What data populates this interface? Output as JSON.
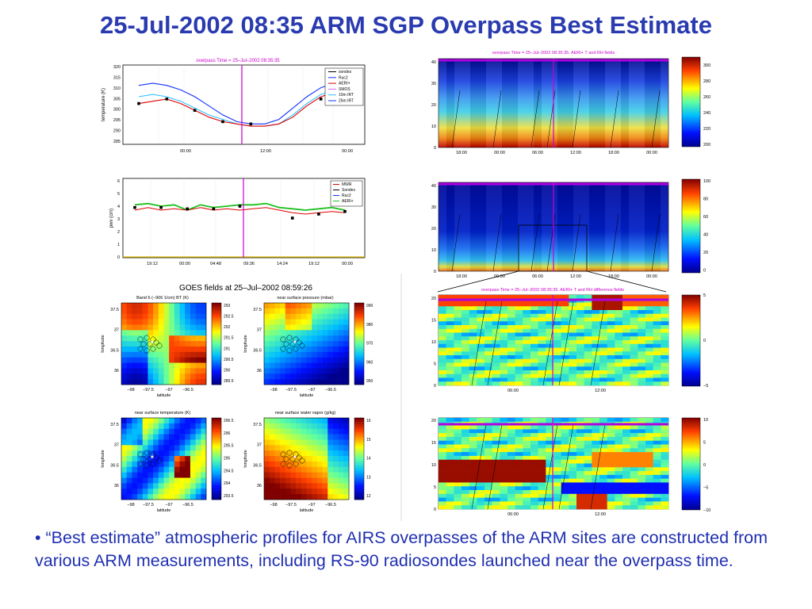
{
  "page": {
    "title": "25-Jul-2002 08:35 ARM SGP Overpass Best Estimate",
    "bullet": "• “Best estimate” atmospheric profiles for AIRS overpasses of the ARM sites are constructed from various ARM measurements, including RS-90 radiosondes launched near the overpass time.",
    "goes_heading": "GOES fields at 25–Jul–2002 08:59:26"
  },
  "colors": {
    "title": "#2a3bb0",
    "overpass_line": "#cc00cc",
    "bullet": "#1f2fb0"
  },
  "chart_data": [
    {
      "id": "temperature",
      "type": "line",
      "title": "overpass Time = 25–Jul–2002 08:35:35",
      "ylabel": "temperature (K)",
      "ylim": [
        285,
        320
      ],
      "yticks": [
        "320",
        "315",
        "310",
        "305",
        "300",
        "295",
        "290",
        "285"
      ],
      "xticks": [
        "00:00",
        "12:00",
        "00:00"
      ],
      "grid": true,
      "legend": [
        "sondes",
        "Ruc2",
        "AERI+",
        "SMOS",
        "10m IRT",
        "25m IRT"
      ],
      "legend_position": "top-right",
      "series": [
        {
          "name": "25m IRT",
          "values": [
            311,
            312,
            311,
            309,
            306,
            302,
            298,
            295,
            294,
            294,
            296,
            301,
            306,
            310,
            312,
            313
          ]
        },
        {
          "name": "10m IRT",
          "values": [
            306,
            307,
            306,
            304,
            301,
            298,
            296,
            294,
            293,
            293,
            294,
            298,
            303,
            307,
            309,
            309
          ]
        },
        {
          "name": "SMOS",
          "values": [
            303,
            304,
            305,
            303,
            300,
            297,
            295,
            294,
            293,
            293,
            294,
            297,
            302,
            306,
            308,
            308
          ]
        },
        {
          "name": "sondes",
          "values": [
            303,
            null,
            305,
            null,
            300,
            null,
            295,
            null,
            294,
            null,
            null,
            null,
            null,
            305,
            306,
            null
          ]
        }
      ]
    },
    {
      "id": "pwv",
      "type": "line",
      "ylabel": "pwv (cm)",
      "ylim": [
        0,
        6
      ],
      "yticks": [
        "6",
        "5",
        "4",
        "3",
        "2",
        "1",
        "0"
      ],
      "xticks": [
        "19:12",
        "00:00",
        "04:48",
        "09:36",
        "14:24",
        "19:12",
        "00:00"
      ],
      "grid": true,
      "legend": [
        "MWR",
        "Sondes",
        "Ruc2",
        "AERI+"
      ],
      "legend_position": "top-right",
      "series": [
        {
          "name": "AERI+",
          "values": [
            4.0,
            4.1,
            3.9,
            4.0,
            3.6,
            4.0,
            3.8,
            3.9,
            4.0,
            4.0,
            4.1,
            3.8,
            3.7,
            3.6,
            3.7,
            3.8,
            3.6
          ]
        },
        {
          "name": "MWR",
          "values": [
            3.6,
            3.8,
            3.6,
            3.7,
            3.6,
            3.8,
            3.6,
            3.7,
            3.6,
            3.7,
            3.8,
            3.6,
            3.4,
            3.3,
            3.4,
            3.5,
            3.4
          ]
        },
        {
          "name": "Sondes",
          "values": [
            3.8,
            null,
            3.8,
            null,
            3.7,
            null,
            3.7,
            null,
            3.9,
            null,
            null,
            null,
            3.0,
            null,
            3.3,
            null,
            3.5
          ]
        }
      ]
    },
    {
      "id": "aeri_temp",
      "type": "heatmap",
      "title": "overpass Time = 25–Jul–2002 08:35:35.  AERI+ T and RH fields",
      "yticks": [
        "40",
        "30",
        "20",
        "10",
        "0"
      ],
      "xticks": [
        "18:00",
        "00:00",
        "06:00",
        "12:00",
        "18:00",
        "00:00"
      ],
      "colorbar_ticks": [
        "300",
        "280",
        "260",
        "240",
        "220",
        "200"
      ]
    },
    {
      "id": "aeri_rh",
      "type": "heatmap",
      "yticks": [
        "40",
        "30",
        "20",
        "10",
        "0"
      ],
      "xticks": [
        "18:00",
        "00:00",
        "06:00",
        "12:00",
        "18:00",
        "00:00"
      ],
      "colorbar_ticks": [
        "100",
        "80",
        "60",
        "40",
        "20",
        "0"
      ]
    },
    {
      "id": "diff_temp",
      "type": "heatmap",
      "title": "overpass Time = 25–Jul–2002 08:35:35.  AERI+ T and RH difference fields",
      "yticks": [
        "20",
        "15",
        "10",
        "5",
        "0"
      ],
      "xticks": [
        "06:00",
        "12:00"
      ],
      "colorbar_ticks": [
        "5",
        "0",
        "−5"
      ]
    },
    {
      "id": "diff_rh",
      "type": "heatmap",
      "yticks": [
        "20",
        "15",
        "10",
        "5",
        "0"
      ],
      "xticks": [
        "06:00",
        "12:00"
      ],
      "colorbar_ticks": [
        "10",
        "5",
        "0",
        "−5",
        "−10"
      ]
    },
    {
      "id": "goes_bt",
      "type": "heatmap",
      "title": "Band 6 (−906 1/cm) BT (K)",
      "xlabel": "latitude",
      "ylabel": "longitude",
      "xticks": [
        "−98",
        "−97.5",
        "−97",
        "−96.5"
      ],
      "yticks": [
        "37.5",
        "37",
        "36.5",
        "36"
      ],
      "colorbar_ticks": [
        "293",
        "292.5",
        "292",
        "291.5",
        "291",
        "290.5",
        "290",
        "289.5"
      ]
    },
    {
      "id": "goes_pressure",
      "type": "heatmap",
      "title": "near surface pressure (mbar)",
      "xlabel": "latitude",
      "ylabel": "longitude",
      "xticks": [
        "−98",
        "−97.5",
        "−97",
        "−96.5"
      ],
      "yticks": [
        "37.5",
        "37",
        "36.5",
        "36"
      ],
      "colorbar_ticks": [
        "990",
        "980",
        "970",
        "960",
        "950"
      ]
    },
    {
      "id": "goes_temp",
      "type": "heatmap",
      "title": "near surface temperature (K)",
      "xlabel": "latitude",
      "ylabel": "longitude",
      "xticks": [
        "−98",
        "−97.5",
        "−97",
        "−96.5"
      ],
      "yticks": [
        "37.5",
        "37",
        "36.5",
        "36"
      ],
      "colorbar_ticks": [
        "296.5",
        "296",
        "295.5",
        "295",
        "294.5",
        "294",
        "293.5"
      ]
    },
    {
      "id": "goes_wv",
      "type": "heatmap",
      "title": "near surface water vapor (g/kg)",
      "xlabel": "latitude",
      "ylabel": "longitude",
      "xticks": [
        "−98",
        "−97.5",
        "−97",
        "−96.5"
      ],
      "yticks": [
        "37.5",
        "37",
        "36.5",
        "36"
      ],
      "colorbar_ticks": [
        "16",
        "15",
        "14",
        "13",
        "12"
      ]
    }
  ]
}
